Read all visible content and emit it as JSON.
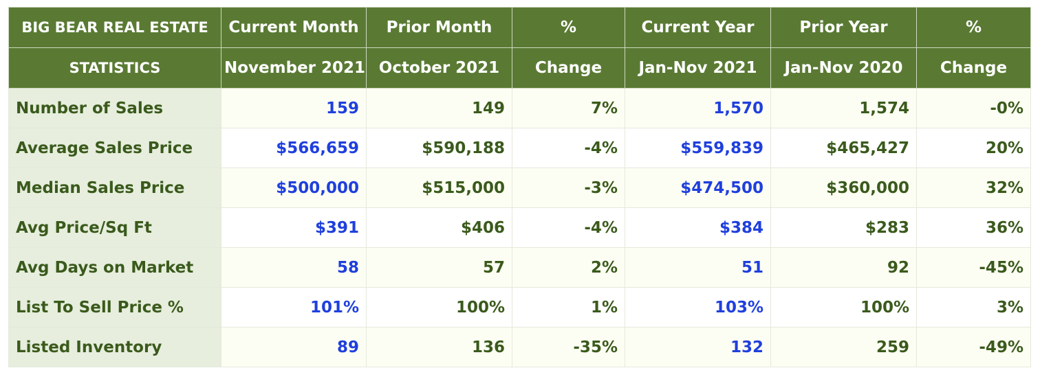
{
  "table": {
    "header_row1": [
      "BIG BEAR REAL ESTATE",
      "Current Month",
      "Prior Month",
      "%",
      "Current Year",
      "Prior Year",
      "%"
    ],
    "header_row2": [
      "STATISTICS",
      "November 2021",
      "October 2021",
      "Change",
      "Jan-Nov 2021",
      "Jan-Nov 2020",
      "Change"
    ],
    "rows": [
      {
        "label": "Number of Sales",
        "values": [
          "159",
          "149",
          "7%",
          "1,570",
          "1,574",
          "-0%"
        ]
      },
      {
        "label": "Average Sales Price",
        "values": [
          "$566,659",
          "$590,188",
          "-4%",
          "$559,839",
          "$465,427",
          "20%"
        ]
      },
      {
        "label": "Median Sales Price",
        "values": [
          "$500,000",
          "$515,000",
          "-3%",
          "$474,500",
          "$360,000",
          "32%"
        ]
      },
      {
        "label": "Avg Price/Sq Ft",
        "values": [
          "$391",
          "$406",
          "-4%",
          "$384",
          "$283",
          "36%"
        ]
      },
      {
        "label": "Avg Days on Market",
        "values": [
          "58",
          "57",
          "2%",
          "51",
          "92",
          "-45%"
        ]
      },
      {
        "label": "List To Sell Price %",
        "values": [
          "101%",
          "100%",
          "1%",
          "103%",
          "100%",
          "3%"
        ]
      },
      {
        "label": "Listed Inventory",
        "values": [
          "89",
          "136",
          "-35%",
          "132",
          "259",
          "-49%"
        ]
      }
    ]
  },
  "chart_data": {
    "type": "table",
    "columns": [
      "Current Month November 2021",
      "Prior Month October 2021",
      "% Change",
      "Current Year Jan-Nov 2021",
      "Prior Year Jan-Nov 2020",
      "% Change"
    ],
    "rows": [
      "Number of Sales",
      "Average Sales Price",
      "Median Sales Price",
      "Avg Price/Sq Ft",
      "Avg Days on Market",
      "List To Sell Price %",
      "Listed Inventory"
    ]
  },
  "colors": {
    "header_bg": "#5a7a33",
    "label_bg": "#e7eedd",
    "text_green": "#3a5a1c",
    "current_blue": "#1f3fdd"
  }
}
